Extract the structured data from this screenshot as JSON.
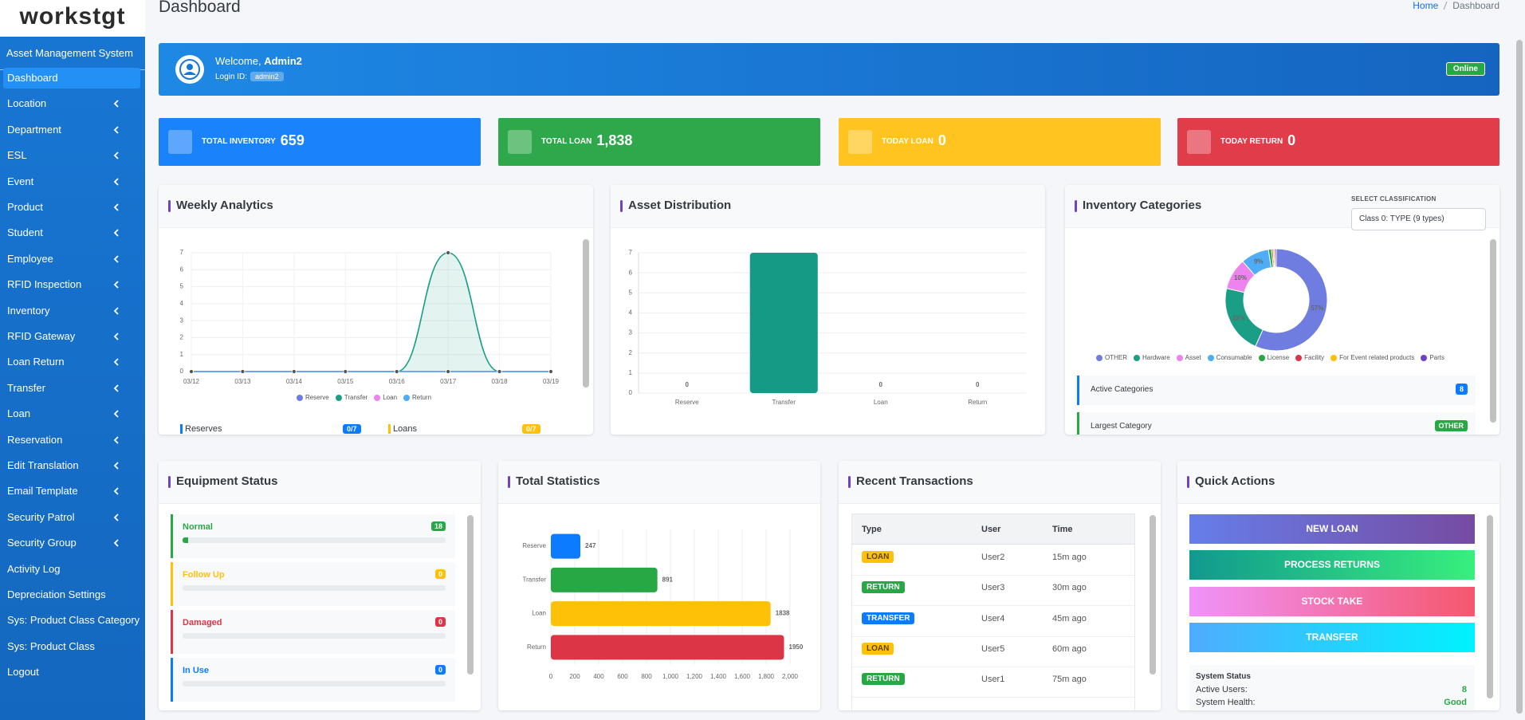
{
  "sidebar": {
    "logo": "workstgt",
    "subtitle": "Asset Management System",
    "menu": [
      {
        "label": "Dashboard",
        "active": true
      },
      {
        "label": "Location",
        "has_children": true
      },
      {
        "label": "Department",
        "has_children": true
      },
      {
        "label": "ESL",
        "has_children": true
      },
      {
        "label": "Event",
        "has_children": true
      },
      {
        "label": "Product",
        "has_children": true
      },
      {
        "label": "Student",
        "has_children": true
      },
      {
        "label": "Employee",
        "has_children": true
      },
      {
        "label": "RFID Inspection",
        "has_children": true
      },
      {
        "label": "Inventory",
        "has_children": true
      },
      {
        "label": "RFID Gateway",
        "has_children": true
      },
      {
        "label": "Loan Return",
        "has_children": true
      },
      {
        "label": "Transfer",
        "has_children": true
      },
      {
        "label": "Loan",
        "has_children": true
      },
      {
        "label": "Reservation",
        "has_children": true
      },
      {
        "label": "Edit Translation",
        "has_children": true
      },
      {
        "label": "Email Template",
        "has_children": true
      },
      {
        "label": "Security Patrol",
        "has_children": true
      },
      {
        "label": "Security Group",
        "has_children": true
      },
      {
        "label": "Activity Log"
      },
      {
        "label": "Depreciation Settings"
      },
      {
        "label": "Sys: Product Class Category"
      },
      {
        "label": "Sys: Product Class"
      },
      {
        "label": "Logout"
      }
    ]
  },
  "header": {
    "title": "Dashboard",
    "breadcrumb": [
      "Home",
      "Dashboard"
    ]
  },
  "welcome": {
    "greeting": "Welcome,",
    "name": "Admin2",
    "login_label": "Login ID:",
    "login_id": "admin2",
    "status": "Online"
  },
  "stats": [
    {
      "label": "TOTAL INVENTORY",
      "value": "659",
      "color": "#1a82fb"
    },
    {
      "label": "TOTAL LOAN",
      "value": "1,838",
      "color": "#2ea84a"
    },
    {
      "label": "TODAY LOAN",
      "value": "0",
      "color": "#ffc41f"
    },
    {
      "label": "TODAY RETURN",
      "value": "0",
      "color": "#e03c4a"
    }
  ],
  "chart_data": [
    {
      "type": "line",
      "title": "Weekly Analytics",
      "categories": [
        "03/12",
        "03/13",
        "03/14",
        "03/15",
        "03/16",
        "03/17",
        "03/18",
        "03/19"
      ],
      "series": [
        {
          "name": "Reserve",
          "color": "#6f7de0",
          "values": [
            0,
            0,
            0,
            0,
            0,
            0,
            0,
            0
          ]
        },
        {
          "name": "Transfer",
          "color": "#1a9e86",
          "area": true,
          "values": [
            0,
            0,
            0,
            0,
            0,
            7,
            0,
            0
          ]
        },
        {
          "name": "Loan",
          "color": "#ee82ee",
          "values": [
            0,
            0,
            0,
            0,
            0,
            0,
            0,
            0
          ]
        },
        {
          "name": "Return",
          "color": "#4facf7",
          "values": [
            0,
            0,
            0,
            0,
            0,
            0,
            0,
            0
          ]
        }
      ],
      "ylim": [
        0,
        7
      ],
      "yticks": [
        0,
        1,
        2,
        3,
        4,
        5,
        6,
        7
      ],
      "grid": true,
      "legend": "bottom"
    },
    {
      "type": "bar",
      "title": "Asset Distribution",
      "categories": [
        "Reserve",
        "Transfer",
        "Loan",
        "Return"
      ],
      "values": [
        0,
        7,
        0,
        0
      ],
      "color": "#149a85",
      "ylim": [
        0,
        7
      ],
      "yticks": [
        0,
        1,
        2,
        3,
        4,
        5,
        6,
        7
      ],
      "grid": true
    },
    {
      "type": "pie",
      "donut": true,
      "title": "Inventory Categories",
      "categories": [
        "OTHER",
        "Hardware",
        "Asset",
        "Consumable",
        "License",
        "Facility",
        "For Event related products",
        "Parts"
      ],
      "values": [
        57,
        22,
        10,
        9,
        1,
        0.5,
        0.5,
        0.5
      ],
      "value_labels": [
        "57%",
        "22%",
        "10%",
        "9%",
        null,
        null,
        null,
        null
      ],
      "colors": [
        "#6f7de0",
        "#1a9e86",
        "#ee82ee",
        "#4facf7",
        "#28a745",
        "#dc3545",
        "#ffc107",
        "#6f42c1"
      ],
      "legend": "bottom"
    },
    {
      "type": "hbar",
      "title": "Total Statistics",
      "categories": [
        "Reserve",
        "Transfer",
        "Loan",
        "Return"
      ],
      "values": [
        247,
        891,
        1838,
        1950
      ],
      "colors": [
        "#0d7bff",
        "#28a745",
        "#ffc107",
        "#dc3545"
      ],
      "xlim": [
        0,
        2000
      ],
      "xticks": [
        0,
        200,
        400,
        600,
        800,
        {
          "value": 1000,
          "label": "1,000"
        },
        {
          "value": 1200,
          "label": "1,200"
        },
        {
          "value": 1400,
          "label": "1,400"
        },
        {
          "value": 1600,
          "label": "1,600"
        },
        {
          "value": 1800,
          "label": "1,800"
        },
        {
          "value": 2000,
          "label": "2,000"
        }
      ],
      "grid": true
    }
  ],
  "weekly_footer": [
    {
      "label": "Reserves",
      "value": "0/7",
      "color": "#0d7bff"
    },
    {
      "label": "Loans",
      "value": "0/7",
      "color": "#ffc107"
    }
  ],
  "category_select": {
    "label": "SELECT CLASSIFICATION",
    "value": "Class 0: TYPE (9 types)"
  },
  "category_summary": [
    {
      "label": "Active Categories",
      "value": "8",
      "color": "#0d7bff"
    },
    {
      "label": "Largest Category",
      "value": "OTHER",
      "color": "#28a745"
    }
  ],
  "equipment_status": {
    "title": "Equipment Status",
    "items": [
      {
        "label": "Normal",
        "count": 18,
        "progress": 2,
        "color": "#28a745"
      },
      {
        "label": "Follow Up",
        "count": 0,
        "progress": 0,
        "color": "#ffc107"
      },
      {
        "label": "Damaged",
        "count": 0,
        "progress": 0,
        "color": "#dc3545"
      },
      {
        "label": "In Use",
        "count": 0,
        "progress": 0,
        "color": "#0d7bff"
      }
    ]
  },
  "transactions": {
    "title": "Recent Transactions",
    "columns": [
      "Type",
      "User",
      "Time"
    ],
    "rows": [
      {
        "type": "LOAN",
        "user": "User2",
        "time": "15m ago",
        "color": "#ffc107"
      },
      {
        "type": "RETURN",
        "user": "User3",
        "time": "30m ago",
        "color": "#28a745"
      },
      {
        "type": "TRANSFER",
        "user": "User4",
        "time": "45m ago",
        "color": "#0d7bff"
      },
      {
        "type": "LOAN",
        "user": "User5",
        "time": "60m ago",
        "color": "#ffc107"
      },
      {
        "type": "RETURN",
        "user": "User1",
        "time": "75m ago",
        "color": "#28a745"
      }
    ]
  },
  "quick_actions": {
    "title": "Quick Actions",
    "buttons": [
      {
        "label": "NEW LOAN",
        "gradient": [
          "#667eea",
          "#764ba2"
        ]
      },
      {
        "label": "PROCESS RETURNS",
        "gradient": [
          "#11998e",
          "#38ef7d"
        ]
      },
      {
        "label": "STOCK TAKE",
        "gradient": [
          "#f093fb",
          "#f5576c"
        ]
      },
      {
        "label": "TRANSFER",
        "gradient": [
          "#4facfe",
          "#00f2fe"
        ]
      }
    ],
    "system_status": {
      "title": "System Status",
      "items": [
        {
          "label": "Active Users:",
          "value": "8"
        },
        {
          "label": "System Health:",
          "value": "Good"
        }
      ]
    }
  }
}
